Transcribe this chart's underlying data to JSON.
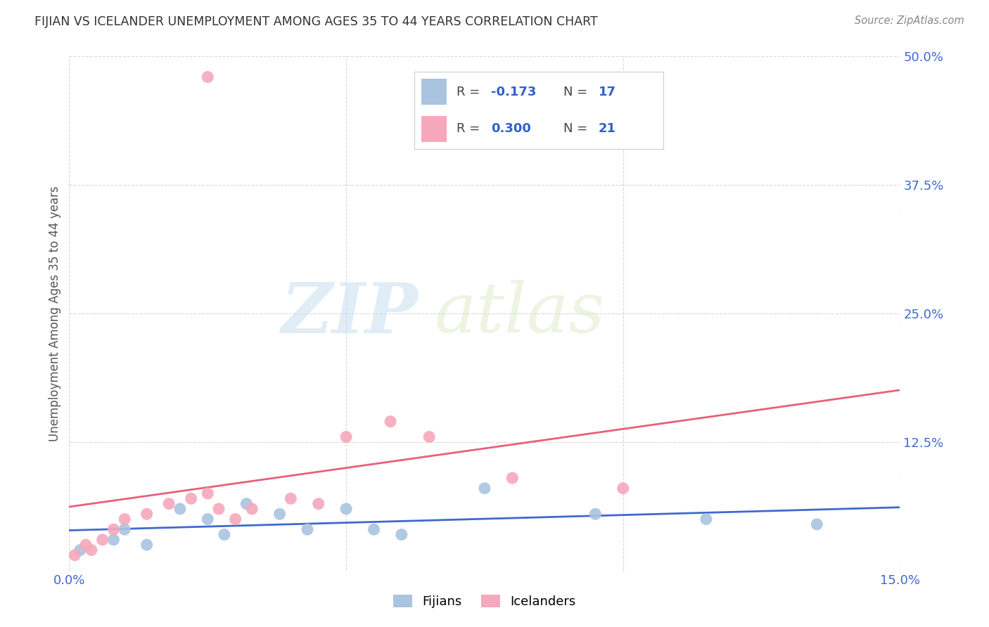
{
  "title": "FIJIAN VS ICELANDER UNEMPLOYMENT AMONG AGES 35 TO 44 YEARS CORRELATION CHART",
  "source": "Source: ZipAtlas.com",
  "ylabel": "Unemployment Among Ages 35 to 44 years",
  "xlim": [
    0.0,
    0.15
  ],
  "ylim": [
    0.0,
    0.5
  ],
  "xticks": [
    0.0,
    0.05,
    0.1,
    0.15
  ],
  "xtick_labels": [
    "0.0%",
    "",
    "",
    "15.0%"
  ],
  "yticks": [
    0.0,
    0.125,
    0.25,
    0.375,
    0.5
  ],
  "ytick_labels": [
    "",
    "12.5%",
    "25.0%",
    "37.5%",
    "50.0%"
  ],
  "fijian_color": "#aac4e0",
  "icelander_color": "#f5a8bc",
  "fijian_line_color": "#4169cd",
  "icelander_line_color": "#e8607a",
  "legend_fijian_color": "#aac4e0",
  "legend_icelander_color": "#f5a8bc",
  "R_fijian": -0.173,
  "N_fijian": 17,
  "R_icelander": 0.3,
  "N_icelander": 21,
  "fijian_x": [
    0.002,
    0.008,
    0.01,
    0.014,
    0.02,
    0.025,
    0.028,
    0.032,
    0.038,
    0.043,
    0.05,
    0.055,
    0.06,
    0.075,
    0.095,
    0.115,
    0.135
  ],
  "fijian_y": [
    0.02,
    0.03,
    0.04,
    0.025,
    0.06,
    0.05,
    0.035,
    0.065,
    0.055,
    0.04,
    0.06,
    0.04,
    0.035,
    0.08,
    0.055,
    0.05,
    0.045
  ],
  "icelander_x": [
    0.001,
    0.003,
    0.004,
    0.006,
    0.008,
    0.01,
    0.014,
    0.018,
    0.022,
    0.025,
    0.027,
    0.03,
    0.033,
    0.04,
    0.045,
    0.05,
    0.058,
    0.065,
    0.08,
    0.1,
    0.025
  ],
  "icelander_y": [
    0.015,
    0.025,
    0.02,
    0.03,
    0.04,
    0.05,
    0.055,
    0.065,
    0.07,
    0.075,
    0.06,
    0.05,
    0.06,
    0.07,
    0.065,
    0.13,
    0.145,
    0.13,
    0.09,
    0.08,
    0.48
  ],
  "watermark_zip": "ZIP",
  "watermark_atlas": "atlas",
  "background_color": "#ffffff",
  "grid_color": "#d8d8d8",
  "tick_color": "#4169cd",
  "axis_label_color": "#555555",
  "title_color": "#333333",
  "source_color": "#888888"
}
